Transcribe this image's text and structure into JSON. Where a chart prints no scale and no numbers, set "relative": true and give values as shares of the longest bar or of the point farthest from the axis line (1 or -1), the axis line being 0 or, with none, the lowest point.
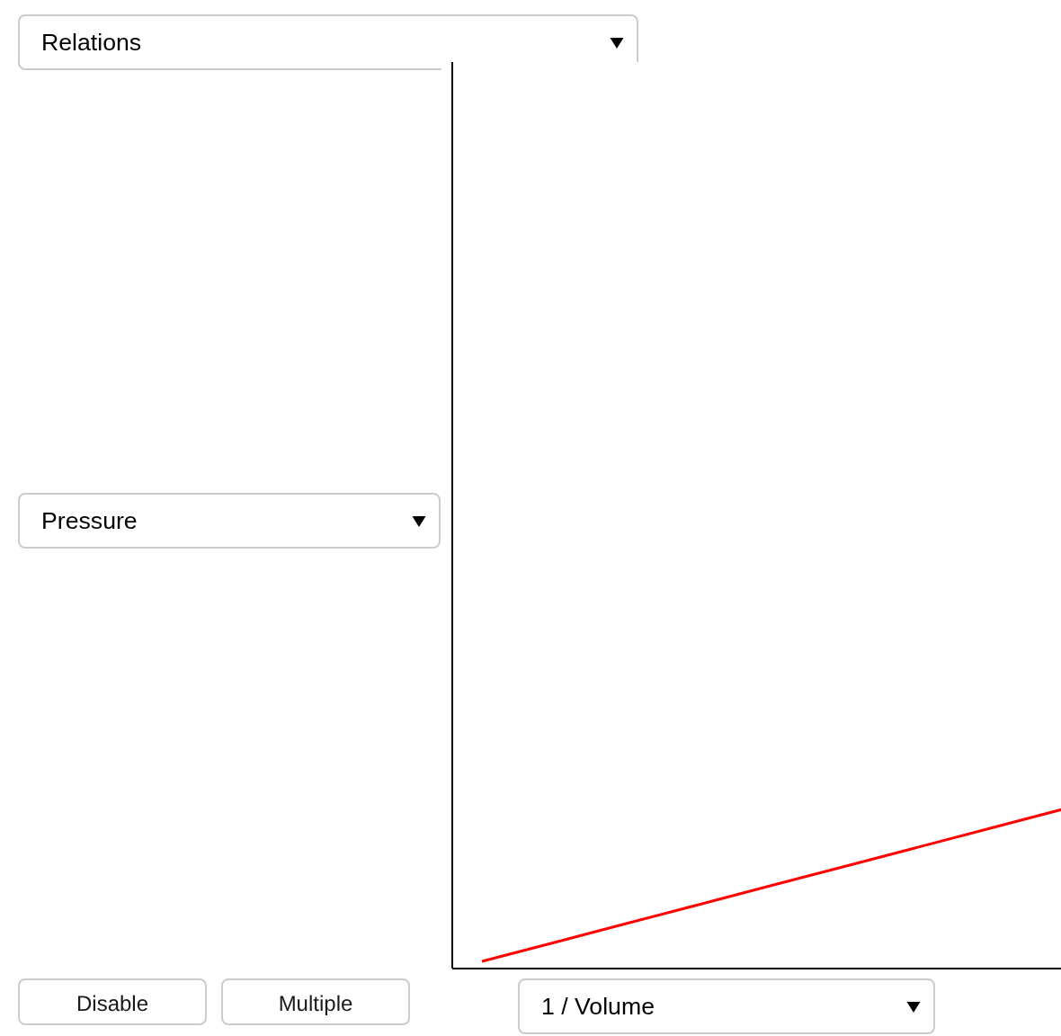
{
  "chart_data": {
    "type": "line",
    "relative": true,
    "title": "Relations",
    "xlabel": "1 / Volume",
    "annotations": [
      "Pressure",
      "Disable",
      "Multiple"
    ],
    "categories": [
      null,
      null,
      null,
      null,
      null,
      null,
      null,
      null,
      null
    ],
    "series": [
      {
        "color": "#ff0000",
        "values": [
          0.045,
          0.164,
          0.284,
          0.403,
          0.523,
          0.642,
          0.761,
          0.881,
          1.0
        ]
      }
    ],
    "tick_labels": false,
    "grid": false,
    "marker": "none",
    "line_style": "solid"
  }
}
